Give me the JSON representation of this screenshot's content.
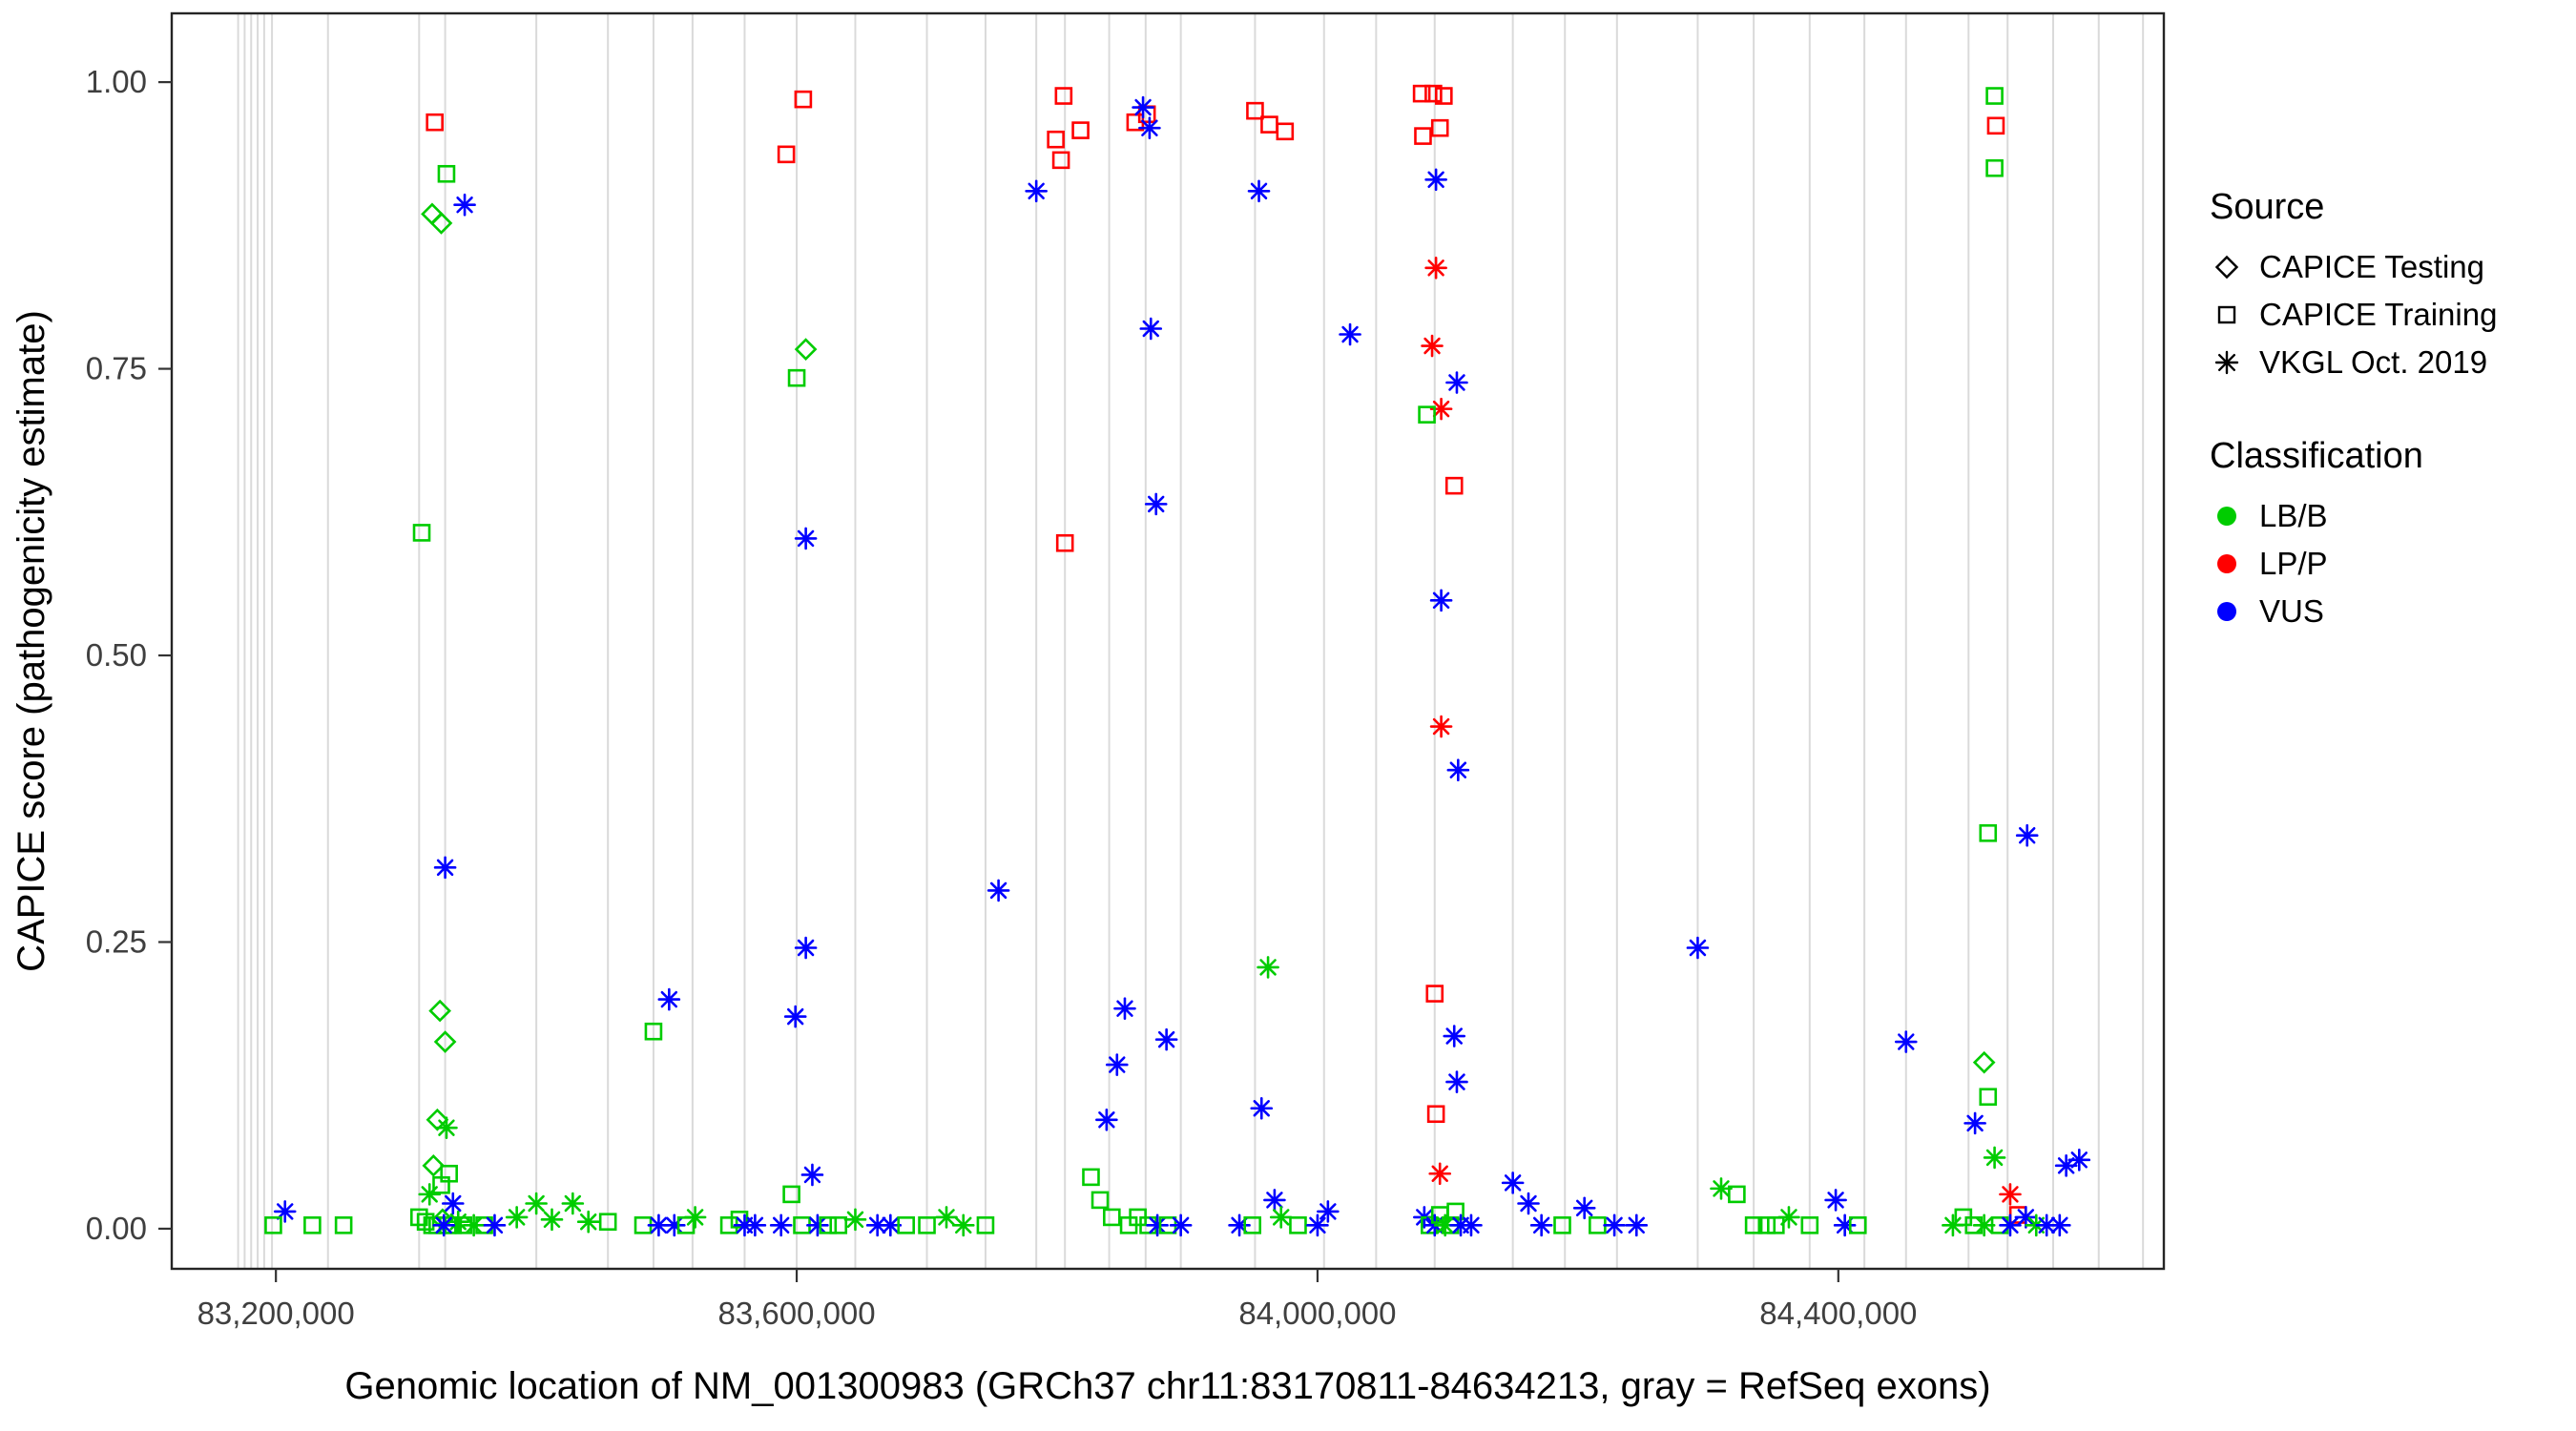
{
  "figure": {
    "xlabel": "Genomic location of NM_001300983 (GRCh37 chr11:83170811-84634213, gray = RefSeq exons)",
    "ylabel": "CAPICE score (pathogenicity estimate)"
  },
  "axes": {
    "x": {
      "range": [
        83120000,
        84650000
      ],
      "ticks": [
        {
          "value": 83200000,
          "label": "83,200,000"
        },
        {
          "value": 83600000,
          "label": "83,600,000"
        },
        {
          "value": 84000000,
          "label": "84,000,000"
        },
        {
          "value": 84400000,
          "label": "84,400,000"
        }
      ]
    },
    "y": {
      "range": [
        -0.035,
        1.06
      ],
      "ticks": [
        {
          "value": 0.0,
          "label": "0.00"
        },
        {
          "value": 0.25,
          "label": "0.25"
        },
        {
          "value": 0.5,
          "label": "0.50"
        },
        {
          "value": 0.75,
          "label": "0.75"
        },
        {
          "value": 1.0,
          "label": "1.00"
        }
      ]
    }
  },
  "legend": {
    "source": {
      "title": "Source",
      "items": [
        {
          "label": "CAPICE Testing",
          "shape": "diamond"
        },
        {
          "label": "CAPICE Training",
          "shape": "square"
        },
        {
          "label": "VKGL Oct. 2019",
          "shape": "asterisk"
        }
      ]
    },
    "classification": {
      "title": "Classification",
      "items": [
        {
          "label": "LB/B",
          "color": "#00CC00"
        },
        {
          "label": "LP/P",
          "color": "#FF0000"
        },
        {
          "label": "VUS",
          "color": "#0000FF"
        }
      ]
    }
  },
  "colors": {
    "classification": {
      "LB/B": "#00CC00",
      "LP/P": "#FF0000",
      "VUS": "#0000FF"
    },
    "exon_line": "#DADADA",
    "panel_border": "#252525",
    "tick_mark": "#333333"
  },
  "chart_data": {
    "type": "scatter",
    "title": "",
    "xlabel": "Genomic location of NM_001300983 (GRCh37 chr11:83170811-84634213, gray = RefSeq exons)",
    "ylabel": "CAPICE score (pathogenicity estimate)",
    "x_tick_values": [
      83200000,
      83600000,
      84000000,
      84400000
    ],
    "x_tick_labels": [
      "83,200,000",
      "83,600,000",
      "84,000,000",
      "84,400,000"
    ],
    "y_tick_values": [
      0.0,
      0.25,
      0.5,
      0.75,
      1.0
    ],
    "y_tick_labels": [
      "0.00",
      "0.25",
      "0.50",
      "0.75",
      "1.00"
    ],
    "ylim": [
      0,
      1
    ],
    "shape_encoding": {
      "diamond": "CAPICE Testing",
      "square": "CAPICE Training",
      "asterisk": "VKGL Oct. 2019"
    },
    "color_encoding": {
      "LB/B": "#00CC00",
      "LP/P": "#FF0000",
      "VUS": "#0000FF"
    },
    "refseq_exon_positions": [
      83171000,
      83176000,
      83181000,
      83186000,
      83191000,
      83197000,
      83240000,
      83310000,
      83330000,
      83400000,
      83455000,
      83490000,
      83520000,
      83560000,
      83600000,
      83645000,
      83700000,
      83745000,
      83784000,
      83806000,
      83840000,
      83868000,
      83895000,
      83952000,
      84005000,
      84045000,
      84090000,
      84150000,
      84190000,
      84230000,
      84292000,
      84335000,
      84378000,
      84420000,
      84452000,
      84500000,
      84530000,
      84565000,
      84600000,
      84634000
    ],
    "columns": [
      "genomic_position",
      "capice_score",
      "source",
      "classification"
    ],
    "points": [
      [
        83207000,
        0.015,
        "vkgl",
        "VUS"
      ],
      [
        83198000,
        0.003,
        "training",
        "LB/B"
      ],
      [
        83228000,
        0.003,
        "training",
        "LB/B"
      ],
      [
        83252000,
        0.003,
        "training",
        "LB/B"
      ],
      [
        83322000,
        0.965,
        "training",
        "LP/P"
      ],
      [
        83331000,
        0.92,
        "training",
        "LB/B"
      ],
      [
        83320000,
        0.885,
        "testing",
        "LB/B"
      ],
      [
        83327000,
        0.877,
        "testing",
        "LB/B"
      ],
      [
        83345000,
        0.893,
        "vkgl",
        "VUS"
      ],
      [
        83312000,
        0.607,
        "training",
        "LB/B"
      ],
      [
        83330000,
        0.315,
        "vkgl",
        "VUS"
      ],
      [
        83326000,
        0.19,
        "testing",
        "LB/B"
      ],
      [
        83330000,
        0.163,
        "testing",
        "LB/B"
      ],
      [
        83324000,
        0.095,
        "testing",
        "LB/B"
      ],
      [
        83331000,
        0.088,
        "vkgl",
        "LB/B"
      ],
      [
        83321000,
        0.055,
        "testing",
        "LB/B"
      ],
      [
        83333000,
        0.048,
        "training",
        "LB/B"
      ],
      [
        83327000,
        0.038,
        "training",
        "LB/B"
      ],
      [
        83318000,
        0.03,
        "vkgl",
        "LB/B"
      ],
      [
        83336000,
        0.022,
        "vkgl",
        "VUS"
      ],
      [
        83310000,
        0.01,
        "training",
        "LB/B"
      ],
      [
        83315000,
        0.006,
        "training",
        "LB/B"
      ],
      [
        83320000,
        0.003,
        "training",
        "LB/B"
      ],
      [
        83324000,
        0.003,
        "training",
        "LB/B"
      ],
      [
        83328000,
        0.008,
        "testing",
        "LB/B"
      ],
      [
        83332000,
        0.003,
        "training",
        "LB/B"
      ],
      [
        83336000,
        0.003,
        "training",
        "LB/B"
      ],
      [
        83340000,
        0.006,
        "vkgl",
        "LB/B"
      ],
      [
        83344000,
        0.003,
        "training",
        "LB/B"
      ],
      [
        83329000,
        0.003,
        "vkgl",
        "VUS"
      ],
      [
        83352000,
        0.003,
        "vkgl",
        "LB/B"
      ],
      [
        83360000,
        0.003,
        "training",
        "LB/B"
      ],
      [
        83368000,
        0.003,
        "vkgl",
        "VUS"
      ],
      [
        83385000,
        0.01,
        "vkgl",
        "LB/B"
      ],
      [
        83400000,
        0.022,
        "vkgl",
        "LB/B"
      ],
      [
        83412000,
        0.008,
        "vkgl",
        "LB/B"
      ],
      [
        83428000,
        0.022,
        "vkgl",
        "LB/B"
      ],
      [
        83440000,
        0.006,
        "vkgl",
        "LB/B"
      ],
      [
        83455000,
        0.006,
        "training",
        "LB/B"
      ],
      [
        83490000,
        0.172,
        "training",
        "LB/B"
      ],
      [
        83502000,
        0.2,
        "vkgl",
        "VUS"
      ],
      [
        83482000,
        0.003,
        "training",
        "LB/B"
      ],
      [
        83494000,
        0.003,
        "vkgl",
        "VUS"
      ],
      [
        83506000,
        0.003,
        "vkgl",
        "VUS"
      ],
      [
        83515000,
        0.003,
        "training",
        "LB/B"
      ],
      [
        83522000,
        0.01,
        "vkgl",
        "LB/B"
      ],
      [
        83548000,
        0.003,
        "training",
        "LB/B"
      ],
      [
        83556000,
        0.008,
        "training",
        "LB/B"
      ],
      [
        83560000,
        0.003,
        "vkgl",
        "VUS"
      ],
      [
        83568000,
        0.003,
        "vkgl",
        "VUS"
      ],
      [
        83605000,
        0.985,
        "training",
        "LP/P"
      ],
      [
        83592000,
        0.937,
        "training",
        "LP/P"
      ],
      [
        83607000,
        0.767,
        "testing",
        "LB/B"
      ],
      [
        83600000,
        0.742,
        "training",
        "LB/B"
      ],
      [
        83607000,
        0.602,
        "vkgl",
        "VUS"
      ],
      [
        83607000,
        0.245,
        "vkgl",
        "VUS"
      ],
      [
        83599000,
        0.185,
        "vkgl",
        "VUS"
      ],
      [
        83612000,
        0.047,
        "vkgl",
        "VUS"
      ],
      [
        83596000,
        0.03,
        "training",
        "LB/B"
      ],
      [
        83604000,
        0.003,
        "training",
        "LB/B"
      ],
      [
        83588000,
        0.003,
        "vkgl",
        "VUS"
      ],
      [
        83616000,
        0.003,
        "vkgl",
        "VUS"
      ],
      [
        83624000,
        0.003,
        "training",
        "LB/B"
      ],
      [
        83632000,
        0.003,
        "training",
        "LB/B"
      ],
      [
        83645000,
        0.008,
        "vkgl",
        "LB/B"
      ],
      [
        83662000,
        0.003,
        "vkgl",
        "VUS"
      ],
      [
        83672000,
        0.003,
        "vkgl",
        "VUS"
      ],
      [
        83684000,
        0.003,
        "training",
        "LB/B"
      ],
      [
        83700000,
        0.003,
        "training",
        "LB/B"
      ],
      [
        83715000,
        0.01,
        "vkgl",
        "LB/B"
      ],
      [
        83728000,
        0.003,
        "vkgl",
        "LB/B"
      ],
      [
        83755000,
        0.295,
        "vkgl",
        "VUS"
      ],
      [
        83745000,
        0.003,
        "training",
        "LB/B"
      ],
      [
        83784000,
        0.905,
        "vkgl",
        "VUS"
      ],
      [
        83805000,
        0.988,
        "training",
        "LP/P"
      ],
      [
        83799000,
        0.95,
        "training",
        "LP/P"
      ],
      [
        83803000,
        0.932,
        "training",
        "LP/P"
      ],
      [
        83818000,
        0.958,
        "training",
        "LP/P"
      ],
      [
        83806000,
        0.598,
        "training",
        "LP/P"
      ],
      [
        83838000,
        0.095,
        "vkgl",
        "VUS"
      ],
      [
        83846000,
        0.143,
        "vkgl",
        "VUS"
      ],
      [
        83852000,
        0.192,
        "vkgl",
        "VUS"
      ],
      [
        83860000,
        0.965,
        "training",
        "LP/P"
      ],
      [
        83869000,
        0.972,
        "training",
        "LP/P"
      ],
      [
        83866000,
        0.978,
        "vkgl",
        "VUS"
      ],
      [
        83871000,
        0.96,
        "vkgl",
        "VUS"
      ],
      [
        83872000,
        0.785,
        "vkgl",
        "VUS"
      ],
      [
        83876000,
        0.632,
        "vkgl",
        "VUS"
      ],
      [
        83884000,
        0.165,
        "vkgl",
        "VUS"
      ],
      [
        83826000,
        0.045,
        "training",
        "LB/B"
      ],
      [
        83833000,
        0.025,
        "training",
        "LB/B"
      ],
      [
        83842000,
        0.01,
        "training",
        "LB/B"
      ],
      [
        83855000,
        0.003,
        "training",
        "LB/B"
      ],
      [
        83862000,
        0.01,
        "training",
        "LB/B"
      ],
      [
        83870000,
        0.003,
        "training",
        "LB/B"
      ],
      [
        83877000,
        0.003,
        "vkgl",
        "VUS"
      ],
      [
        83885000,
        0.003,
        "training",
        "LB/B"
      ],
      [
        83895000,
        0.003,
        "vkgl",
        "VUS"
      ],
      [
        83952000,
        0.975,
        "training",
        "LP/P"
      ],
      [
        83963000,
        0.963,
        "training",
        "LP/P"
      ],
      [
        83975000,
        0.957,
        "training",
        "LP/P"
      ],
      [
        83955000,
        0.905,
        "vkgl",
        "VUS"
      ],
      [
        83962000,
        0.228,
        "vkgl",
        "LB/B"
      ],
      [
        83957000,
        0.105,
        "vkgl",
        "VUS"
      ],
      [
        83967000,
        0.025,
        "vkgl",
        "VUS"
      ],
      [
        83940000,
        0.003,
        "vkgl",
        "VUS"
      ],
      [
        83950000,
        0.003,
        "training",
        "LB/B"
      ],
      [
        83972000,
        0.01,
        "vkgl",
        "LB/B"
      ],
      [
        83985000,
        0.003,
        "training",
        "LB/B"
      ],
      [
        84000000,
        0.003,
        "vkgl",
        "VUS"
      ],
      [
        84008000,
        0.015,
        "vkgl",
        "VUS"
      ],
      [
        84025000,
        0.78,
        "vkgl",
        "VUS"
      ],
      [
        84080000,
        0.99,
        "training",
        "LP/P"
      ],
      [
        84089000,
        0.99,
        "training",
        "LP/P"
      ],
      [
        84097000,
        0.988,
        "training",
        "LP/P"
      ],
      [
        84081000,
        0.953,
        "training",
        "LP/P"
      ],
      [
        84094000,
        0.96,
        "training",
        "LP/P"
      ],
      [
        84091000,
        0.915,
        "vkgl",
        "VUS"
      ],
      [
        84091000,
        0.838,
        "vkgl",
        "LP/P"
      ],
      [
        84088000,
        0.77,
        "vkgl",
        "LP/P"
      ],
      [
        84107000,
        0.738,
        "vkgl",
        "VUS"
      ],
      [
        84095000,
        0.715,
        "vkgl",
        "LP/P"
      ],
      [
        84084000,
        0.71,
        "training",
        "LB/B"
      ],
      [
        84105000,
        0.648,
        "training",
        "LP/P"
      ],
      [
        84095000,
        0.548,
        "vkgl",
        "VUS"
      ],
      [
        84095000,
        0.438,
        "vkgl",
        "LP/P"
      ],
      [
        84108000,
        0.4,
        "vkgl",
        "VUS"
      ],
      [
        84090000,
        0.205,
        "training",
        "LP/P"
      ],
      [
        84105000,
        0.168,
        "vkgl",
        "VUS"
      ],
      [
        84107000,
        0.128,
        "vkgl",
        "VUS"
      ],
      [
        84091000,
        0.1,
        "training",
        "LP/P"
      ],
      [
        84094000,
        0.048,
        "vkgl",
        "LP/P"
      ],
      [
        84082000,
        0.01,
        "vkgl",
        "VUS"
      ],
      [
        84086000,
        0.003,
        "training",
        "LB/B"
      ],
      [
        84090000,
        0.003,
        "vkgl",
        "VUS"
      ],
      [
        84094000,
        0.012,
        "training",
        "LB/B"
      ],
      [
        84098000,
        0.003,
        "vkgl",
        "LB/B"
      ],
      [
        84102000,
        0.003,
        "training",
        "LB/B"
      ],
      [
        84106000,
        0.015,
        "training",
        "LB/B"
      ],
      [
        84110000,
        0.003,
        "vkgl",
        "VUS"
      ],
      [
        84118000,
        0.003,
        "vkgl",
        "VUS"
      ],
      [
        84150000,
        0.04,
        "vkgl",
        "VUS"
      ],
      [
        84162000,
        0.022,
        "vkgl",
        "VUS"
      ],
      [
        84172000,
        0.003,
        "vkgl",
        "VUS"
      ],
      [
        84188000,
        0.003,
        "training",
        "LB/B"
      ],
      [
        84205000,
        0.018,
        "vkgl",
        "VUS"
      ],
      [
        84215000,
        0.003,
        "training",
        "LB/B"
      ],
      [
        84228000,
        0.003,
        "vkgl",
        "VUS"
      ],
      [
        84245000,
        0.003,
        "vkgl",
        "VUS"
      ],
      [
        84292000,
        0.245,
        "vkgl",
        "VUS"
      ],
      [
        84310000,
        0.035,
        "vkgl",
        "LB/B"
      ],
      [
        84322000,
        0.03,
        "training",
        "LB/B"
      ],
      [
        84335000,
        0.003,
        "training",
        "LB/B"
      ],
      [
        84345000,
        0.003,
        "training",
        "LB/B"
      ],
      [
        84352000,
        0.003,
        "training",
        "LB/B"
      ],
      [
        84362000,
        0.01,
        "vkgl",
        "LB/B"
      ],
      [
        84378000,
        0.003,
        "training",
        "LB/B"
      ],
      [
        84398000,
        0.025,
        "vkgl",
        "VUS"
      ],
      [
        84405000,
        0.003,
        "vkgl",
        "VUS"
      ],
      [
        84415000,
        0.003,
        "training",
        "LB/B"
      ],
      [
        84452000,
        0.163,
        "vkgl",
        "VUS"
      ],
      [
        84520000,
        0.988,
        "training",
        "LB/B"
      ],
      [
        84521000,
        0.962,
        "training",
        "LP/P"
      ],
      [
        84520000,
        0.925,
        "training",
        "LB/B"
      ],
      [
        84515000,
        0.345,
        "training",
        "LB/B"
      ],
      [
        84545000,
        0.343,
        "vkgl",
        "VUS"
      ],
      [
        84512000,
        0.145,
        "testing",
        "LB/B"
      ],
      [
        84515000,
        0.115,
        "training",
        "LB/B"
      ],
      [
        84505000,
        0.092,
        "vkgl",
        "VUS"
      ],
      [
        84520000,
        0.062,
        "vkgl",
        "LB/B"
      ],
      [
        84532000,
        0.03,
        "vkgl",
        "LP/P"
      ],
      [
        84538000,
        0.012,
        "training",
        "LP/P"
      ],
      [
        84488000,
        0.003,
        "vkgl",
        "LB/B"
      ],
      [
        84496000,
        0.01,
        "training",
        "LB/B"
      ],
      [
        84504000,
        0.003,
        "training",
        "LB/B"
      ],
      [
        84512000,
        0.003,
        "vkgl",
        "LB/B"
      ],
      [
        84524000,
        0.003,
        "training",
        "LB/B"
      ],
      [
        84532000,
        0.003,
        "vkgl",
        "VUS"
      ],
      [
        84544000,
        0.01,
        "vkgl",
        "VUS"
      ],
      [
        84552000,
        0.003,
        "vkgl",
        "LB/B"
      ],
      [
        84560000,
        0.003,
        "vkgl",
        "VUS"
      ],
      [
        84575000,
        0.055,
        "vkgl",
        "VUS"
      ],
      [
        84585000,
        0.06,
        "vkgl",
        "VUS"
      ],
      [
        84570000,
        0.003,
        "vkgl",
        "VUS"
      ]
    ]
  }
}
